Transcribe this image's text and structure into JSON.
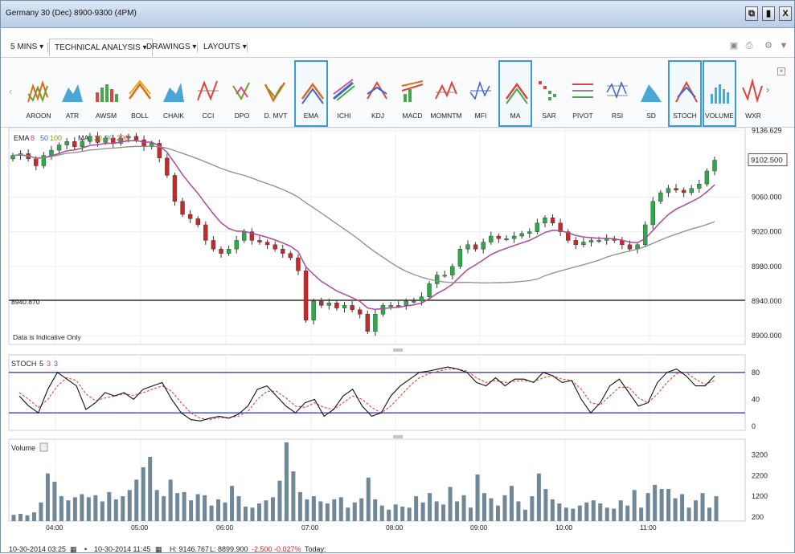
{
  "window": {
    "title": "Germany 30 (Dec) 8900-9300 (4PM)",
    "buttons": [
      "⧉",
      "▮",
      "X"
    ]
  },
  "menubar": {
    "timeframe": "5 MINS",
    "technical_analysis": "TECHNICAL ANALYSIS",
    "drawings": "DRAWINGS",
    "layouts": "LAYOUTS"
  },
  "indicators": [
    {
      "label": "AROON",
      "selected": false
    },
    {
      "label": "ATR",
      "selected": false
    },
    {
      "label": "AWSM",
      "selected": false
    },
    {
      "label": "BOLL",
      "selected": false
    },
    {
      "label": "CHAIK",
      "selected": false
    },
    {
      "label": "CCI",
      "selected": false
    },
    {
      "label": "DPO",
      "selected": false
    },
    {
      "label": "D. MVT",
      "selected": false
    },
    {
      "label": "EMA",
      "selected": true
    },
    {
      "label": "ICHI",
      "selected": false
    },
    {
      "label": "KDJ",
      "selected": false
    },
    {
      "label": "MACD",
      "selected": false
    },
    {
      "label": "MOMNTM",
      "selected": false
    },
    {
      "label": "MFI",
      "selected": false
    },
    {
      "label": "MA",
      "selected": true
    },
    {
      "label": "SAR",
      "selected": false
    },
    {
      "label": "PIVOT",
      "selected": false
    },
    {
      "label": "RSI",
      "selected": false
    },
    {
      "label": "SD",
      "selected": false
    },
    {
      "label": "STOCH",
      "selected": true
    },
    {
      "label": "VOLUME",
      "selected": true
    },
    {
      "label": "WXR",
      "selected": false
    }
  ],
  "main_panel": {
    "legend_ema": "EMA",
    "legend_ema_params": [
      "8",
      "50",
      "100"
    ],
    "legend_ma": "MA",
    "legend_ma_params": [
      "20",
      "80",
      "200"
    ],
    "note": "Data is Indicative Only",
    "reference_line_label": "8940.870",
    "current_price": "9102.500",
    "y_ticks": [
      "9136.629",
      "9060.000",
      "9020.000",
      "8980.000",
      "8940.000",
      "8900.000"
    ]
  },
  "stoch_panel": {
    "legend": "STOCH",
    "legend_params": [
      "5",
      "3",
      "3"
    ],
    "y_ticks": [
      "80",
      "40",
      "0"
    ]
  },
  "volume_panel": {
    "legend": "Volume",
    "y_ticks": [
      "3200",
      "2200",
      "1200",
      "200"
    ]
  },
  "x_ticks": [
    "04:00",
    "05:00",
    "06:00",
    "07:00",
    "08:00",
    "09:00",
    "10:00",
    "11:00"
  ],
  "statusbar": {
    "from": "10-30-2014 03:25",
    "to": "10-30-2014 11:45",
    "high": "H: 9146.767",
    "low": "L: 8899.900",
    "change": "-2.500",
    "change_pct": "-0.027%",
    "today": "Today:"
  },
  "colors": {
    "up": "#2fa84a",
    "down": "#c8282a",
    "ema": "#b0489a",
    "ma": "#8d8d8d",
    "stoch_k": "#111111",
    "stoch_d": "#e0443c",
    "volume": "#6f8797",
    "accent": "#3d9ad0"
  },
  "chart_data": [
    {
      "type": "candlestick",
      "title": "Germany 30 (Dec) 8900-9300 (4PM)",
      "interval": "5 MINS",
      "ylim": [
        8890,
        9140
      ],
      "close": [
        9108,
        9110,
        9104,
        9096,
        9108,
        9114,
        9120,
        9124,
        9118,
        9124,
        9130,
        9123,
        9128,
        9122,
        9128,
        9130,
        9126,
        9118,
        9122,
        9105,
        9085,
        9055,
        9040,
        9035,
        9028,
        9010,
        9000,
        8995,
        9000,
        9010,
        9020,
        9010,
        9008,
        9005,
        9000,
        8995,
        8990,
        8975,
        8918,
        8940,
        8935,
        8938,
        8932,
        8935,
        8930,
        8925,
        8905,
        8925,
        8935,
        8935,
        8935,
        8940,
        8940,
        8945,
        8960,
        8970,
        8970,
        8980,
        9000,
        9005,
        9000,
        9008,
        9015,
        9012,
        9012,
        9015,
        9018,
        9020,
        9030,
        9036,
        9030,
        9020,
        9010,
        9005,
        9008,
        9010,
        9010,
        9012,
        9010,
        9005,
        9000,
        9005,
        9028,
        9055,
        9065,
        9070,
        9068,
        9065,
        9070,
        9075,
        9090,
        9102.5
      ],
      "ema": {
        "name": "EMA",
        "params": [
          8,
          50,
          100
        ]
      },
      "ma": {
        "name": "MA",
        "params": [
          20,
          80,
          200
        ]
      },
      "reference_line": 8940.87
    },
    {
      "type": "line",
      "title": "STOCH",
      "params": [
        5,
        3,
        3
      ],
      "ylim": [
        0,
        100
      ],
      "levels": [
        20,
        80
      ],
      "series": [
        {
          "name": "%K",
          "values": [
            45,
            30,
            20,
            55,
            80,
            70,
            60,
            25,
            35,
            50,
            45,
            50,
            40,
            55,
            60,
            65,
            40,
            20,
            10,
            8,
            12,
            15,
            12,
            18,
            30,
            55,
            60,
            45,
            30,
            20,
            35,
            40,
            15,
            25,
            45,
            55,
            30,
            15,
            20,
            45,
            60,
            70,
            80,
            82,
            85,
            88,
            85,
            80,
            65,
            60,
            72,
            60,
            70,
            70,
            65,
            80,
            75,
            65,
            68,
            40,
            20,
            35,
            60,
            70,
            50,
            30,
            35,
            65,
            80,
            85,
            75,
            60,
            60,
            75
          ]
        },
        {
          "name": "%D",
          "values": [
            50,
            40,
            28,
            40,
            60,
            72,
            68,
            48,
            38,
            42,
            45,
            48,
            46,
            50,
            55,
            60,
            52,
            35,
            20,
            12,
            10,
            13,
            13,
            15,
            22,
            40,
            52,
            52,
            42,
            30,
            28,
            35,
            28,
            25,
            35,
            45,
            40,
            28,
            20,
            30,
            45,
            60,
            72,
            78,
            82,
            85,
            85,
            82,
            72,
            65,
            68,
            65,
            67,
            68,
            66,
            72,
            75,
            70,
            68,
            55,
            35,
            32,
            45,
            58,
            58,
            42,
            35,
            48,
            65,
            78,
            80,
            70,
            62,
            68
          ]
        }
      ]
    },
    {
      "type": "bar",
      "title": "Volume",
      "ylim": [
        0,
        3800
      ],
      "values": [
        300,
        350,
        280,
        420,
        900,
        2300,
        1900,
        1200,
        1000,
        1150,
        1300,
        1150,
        1250,
        950,
        1400,
        1050,
        1200,
        1500,
        2000,
        2600,
        3100,
        1500,
        1200,
        2000,
        1350,
        1400,
        1000,
        1300,
        1250,
        750,
        1050,
        900,
        1700,
        1200,
        700,
        650,
        850,
        1000,
        1150,
        1950,
        3800,
        2400,
        1400,
        1050,
        1200,
        950,
        850,
        1050,
        1150,
        650,
        900,
        1100,
        2100,
        1050,
        750,
        550,
        800,
        700,
        650,
        1200,
        900,
        1350,
        950,
        800,
        1650,
        950,
        1250,
        650,
        2250,
        1350,
        1100,
        750,
        1250,
        1700,
        950,
        550,
        1200,
        2300,
        1550,
        1050,
        850,
        650,
        600,
        750,
        900,
        1000,
        850,
        650,
        600,
        1000,
        750,
        1500,
        650,
        1350,
        1750,
        1550,
        1550,
        1100,
        1300,
        650,
        1000,
        1350,
        650,
        1200
      ],
      "x_ticks": [
        "04:00",
        "05:00",
        "06:00",
        "07:00",
        "08:00",
        "09:00",
        "10:00",
        "11:00"
      ]
    }
  ]
}
